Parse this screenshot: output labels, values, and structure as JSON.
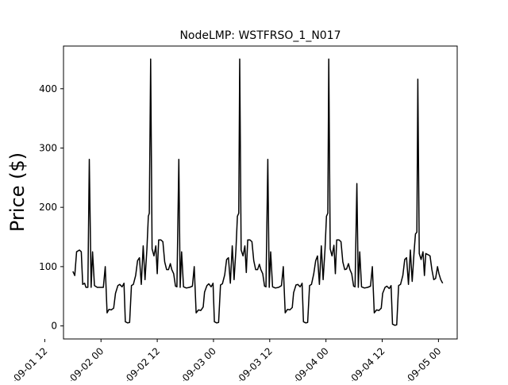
{
  "chart_data": {
    "type": "line",
    "title": "NodeLMP: WSTFRSO_1_N017",
    "xlabel": "",
    "ylabel": "Price ($)",
    "x_unit": "hour",
    "x_start": "2021-08-31T21:00",
    "x_range": [
      "2021-08-31T19:00",
      "2021-09-05T11:00"
    ],
    "ylim": [
      -22,
      472
    ],
    "grid": false,
    "legend": "none",
    "line_color": "#000000",
    "x_ticks": [
      {
        "hour": 15,
        "label": "2021-09-01 12"
      },
      {
        "hour": 27,
        "label": "2021-09-02 00"
      },
      {
        "hour": 39,
        "label": "2021-09-02 12"
      },
      {
        "hour": 51,
        "label": "2021-09-03 00"
      },
      {
        "hour": 63,
        "label": "2021-09-03 12"
      },
      {
        "hour": 75,
        "label": "2021-09-04 00"
      },
      {
        "hour": 87,
        "label": "2021-09-04 12"
      },
      {
        "hour": 99,
        "label": "2021-09-05 00"
      }
    ],
    "y_ticks": [
      0,
      100,
      200,
      300,
      400
    ],
    "series": [
      {
        "values": [
          {
            "x": 0,
            "y": 92
          },
          {
            "x": 0.4,
            "y": 85
          },
          {
            "x": 0.8,
            "y": 125
          },
          {
            "x": 1.4,
            "y": 128
          },
          {
            "x": 1.8,
            "y": 125
          },
          {
            "x": 2.1,
            "y": 70
          },
          {
            "x": 2.5,
            "y": 72
          },
          {
            "x": 2.8,
            "y": 65
          },
          {
            "x": 3.2,
            "y": 65
          },
          {
            "x": 3.5,
            "y": 281
          },
          {
            "x": 3.9,
            "y": 65
          },
          {
            "x": 4.2,
            "y": 125
          },
          {
            "x": 4.6,
            "y": 68
          },
          {
            "x": 5.2,
            "y": 65
          },
          {
            "x": 5.9,
            "y": 65
          },
          {
            "x": 6.5,
            "y": 65
          },
          {
            "x": 6.9,
            "y": 100
          },
          {
            "x": 7.3,
            "y": 22
          },
          {
            "x": 7.7,
            "y": 28
          },
          {
            "x": 8.2,
            "y": 27
          },
          {
            "x": 8.7,
            "y": 30
          },
          {
            "x": 9.1,
            "y": 55
          },
          {
            "x": 9.6,
            "y": 68
          },
          {
            "x": 10.0,
            "y": 70
          },
          {
            "x": 10.5,
            "y": 66
          },
          {
            "x": 10.9,
            "y": 72
          },
          {
            "x": 11.2,
            "y": 7
          },
          {
            "x": 11.7,
            "y": 5
          },
          {
            "x": 12.1,
            "y": 6
          },
          {
            "x": 12.5,
            "y": 68
          },
          {
            "x": 12.9,
            "y": 70
          },
          {
            "x": 13.4,
            "y": 85
          },
          {
            "x": 13.8,
            "y": 110
          },
          {
            "x": 14.2,
            "y": 115
          },
          {
            "x": 14.6,
            "y": 70
          },
          {
            "x": 15.0,
            "y": 135
          },
          {
            "x": 15.4,
            "y": 78
          },
          {
            "x": 15.8,
            "y": 130
          },
          {
            "x": 16.1,
            "y": 185
          },
          {
            "x": 16.3,
            "y": 190
          },
          {
            "x": 16.6,
            "y": 450
          },
          {
            "x": 16.9,
            "y": 130
          },
          {
            "x": 17.3,
            "y": 118
          },
          {
            "x": 17.7,
            "y": 135
          },
          {
            "x": 18.0,
            "y": 88
          },
          {
            "x": 18.3,
            "y": 145
          },
          {
            "x": 18.8,
            "y": 145
          },
          {
            "x": 19.2,
            "y": 142
          },
          {
            "x": 19.6,
            "y": 108
          },
          {
            "x": 20.0,
            "y": 95
          },
          {
            "x": 20.4,
            "y": 95
          },
          {
            "x": 20.8,
            "y": 105
          },
          {
            "x": 21.1,
            "y": 95
          },
          {
            "x": 21.5,
            "y": 88
          },
          {
            "x": 21.9,
            "y": 67
          },
          {
            "x": 22.2,
            "y": 66
          },
          {
            "x": 22.6,
            "y": 281
          },
          {
            "x": 22.9,
            "y": 65
          },
          {
            "x": 23.2,
            "y": 125
          },
          {
            "x": 23.6,
            "y": 66
          },
          {
            "x": 24.2,
            "y": 64
          },
          {
            "x": 24.9,
            "y": 65
          },
          {
            "x": 25.5,
            "y": 67
          },
          {
            "x": 25.9,
            "y": 100
          },
          {
            "x": 26.3,
            "y": 22
          },
          {
            "x": 26.8,
            "y": 27
          },
          {
            "x": 27.3,
            "y": 26
          },
          {
            "x": 27.8,
            "y": 32
          },
          {
            "x": 28.1,
            "y": 57
          },
          {
            "x": 28.6,
            "y": 68
          },
          {
            "x": 29.0,
            "y": 71
          },
          {
            "x": 29.5,
            "y": 66
          },
          {
            "x": 29.9,
            "y": 72
          },
          {
            "x": 30.2,
            "y": 7
          },
          {
            "x": 30.7,
            "y": 5
          },
          {
            "x": 31.1,
            "y": 6
          },
          {
            "x": 31.5,
            "y": 69
          },
          {
            "x": 31.9,
            "y": 71
          },
          {
            "x": 32.4,
            "y": 86
          },
          {
            "x": 32.8,
            "y": 112
          },
          {
            "x": 33.2,
            "y": 115
          },
          {
            "x": 33.6,
            "y": 72
          },
          {
            "x": 34.0,
            "y": 135
          },
          {
            "x": 34.4,
            "y": 78
          },
          {
            "x": 34.8,
            "y": 130
          },
          {
            "x": 35.1,
            "y": 185
          },
          {
            "x": 35.4,
            "y": 190
          },
          {
            "x": 35.6,
            "y": 450
          },
          {
            "x": 35.9,
            "y": 128
          },
          {
            "x": 36.3,
            "y": 118
          },
          {
            "x": 36.7,
            "y": 135
          },
          {
            "x": 37.0,
            "y": 90
          },
          {
            "x": 37.3,
            "y": 145
          },
          {
            "x": 37.8,
            "y": 145
          },
          {
            "x": 38.2,
            "y": 142
          },
          {
            "x": 38.6,
            "y": 110
          },
          {
            "x": 39.0,
            "y": 95
          },
          {
            "x": 39.4,
            "y": 95
          },
          {
            "x": 39.8,
            "y": 104
          },
          {
            "x": 40.1,
            "y": 95
          },
          {
            "x": 40.5,
            "y": 88
          },
          {
            "x": 40.9,
            "y": 67
          },
          {
            "x": 41.2,
            "y": 66
          },
          {
            "x": 41.6,
            "y": 281
          },
          {
            "x": 41.9,
            "y": 65
          },
          {
            "x": 42.2,
            "y": 125
          },
          {
            "x": 42.6,
            "y": 66
          },
          {
            "x": 43.2,
            "y": 64
          },
          {
            "x": 43.9,
            "y": 65
          },
          {
            "x": 44.5,
            "y": 68
          },
          {
            "x": 44.9,
            "y": 100
          },
          {
            "x": 45.3,
            "y": 22
          },
          {
            "x": 45.8,
            "y": 28
          },
          {
            "x": 46.3,
            "y": 27
          },
          {
            "x": 46.8,
            "y": 31
          },
          {
            "x": 47.1,
            "y": 56
          },
          {
            "x": 47.6,
            "y": 69
          },
          {
            "x": 48.0,
            "y": 70
          },
          {
            "x": 48.5,
            "y": 66
          },
          {
            "x": 48.9,
            "y": 72
          },
          {
            "x": 49.2,
            "y": 7
          },
          {
            "x": 49.7,
            "y": 5
          },
          {
            "x": 50.1,
            "y": 6
          },
          {
            "x": 50.5,
            "y": 68
          },
          {
            "x": 50.9,
            "y": 70
          },
          {
            "x": 51.4,
            "y": 88
          },
          {
            "x": 51.8,
            "y": 110
          },
          {
            "x": 52.2,
            "y": 118
          },
          {
            "x": 52.6,
            "y": 70
          },
          {
            "x": 53.0,
            "y": 135
          },
          {
            "x": 53.4,
            "y": 78
          },
          {
            "x": 53.8,
            "y": 130
          },
          {
            "x": 54.1,
            "y": 185
          },
          {
            "x": 54.4,
            "y": 190
          },
          {
            "x": 54.6,
            "y": 450
          },
          {
            "x": 54.9,
            "y": 130
          },
          {
            "x": 55.3,
            "y": 118
          },
          {
            "x": 55.7,
            "y": 136
          },
          {
            "x": 56.0,
            "y": 88
          },
          {
            "x": 56.3,
            "y": 145
          },
          {
            "x": 56.8,
            "y": 145
          },
          {
            "x": 57.2,
            "y": 142
          },
          {
            "x": 57.6,
            "y": 108
          },
          {
            "x": 58.0,
            "y": 95
          },
          {
            "x": 58.4,
            "y": 96
          },
          {
            "x": 58.8,
            "y": 105
          },
          {
            "x": 59.1,
            "y": 95
          },
          {
            "x": 59.5,
            "y": 88
          },
          {
            "x": 59.9,
            "y": 67
          },
          {
            "x": 60.2,
            "y": 66
          },
          {
            "x": 60.6,
            "y": 240
          },
          {
            "x": 60.9,
            "y": 65
          },
          {
            "x": 61.2,
            "y": 125
          },
          {
            "x": 61.6,
            "y": 66
          },
          {
            "x": 62.2,
            "y": 64
          },
          {
            "x": 62.9,
            "y": 65
          },
          {
            "x": 63.5,
            "y": 67
          },
          {
            "x": 63.9,
            "y": 100
          },
          {
            "x": 64.3,
            "y": 22
          },
          {
            "x": 64.8,
            "y": 27
          },
          {
            "x": 65.3,
            "y": 26
          },
          {
            "x": 65.8,
            "y": 30
          },
          {
            "x": 66.1,
            "y": 55
          },
          {
            "x": 66.6,
            "y": 65
          },
          {
            "x": 67.0,
            "y": 67
          },
          {
            "x": 67.5,
            "y": 63
          },
          {
            "x": 67.9,
            "y": 68
          },
          {
            "x": 68.2,
            "y": 3
          },
          {
            "x": 68.7,
            "y": 1
          },
          {
            "x": 69.1,
            "y": 2
          },
          {
            "x": 69.5,
            "y": 68
          },
          {
            "x": 69.9,
            "y": 70
          },
          {
            "x": 70.4,
            "y": 85
          },
          {
            "x": 70.8,
            "y": 112
          },
          {
            "x": 71.2,
            "y": 115
          },
          {
            "x": 71.6,
            "y": 70
          },
          {
            "x": 72.0,
            "y": 128
          },
          {
            "x": 72.4,
            "y": 75
          },
          {
            "x": 72.8,
            "y": 125
          },
          {
            "x": 73.1,
            "y": 155
          },
          {
            "x": 73.4,
            "y": 158
          },
          {
            "x": 73.6,
            "y": 416
          },
          {
            "x": 73.9,
            "y": 122
          },
          {
            "x": 74.3,
            "y": 112
          },
          {
            "x": 74.7,
            "y": 125
          },
          {
            "x": 75.0,
            "y": 85
          },
          {
            "x": 75.3,
            "y": 122
          },
          {
            "x": 75.8,
            "y": 120
          },
          {
            "x": 76.2,
            "y": 118
          },
          {
            "x": 76.6,
            "y": 95
          },
          {
            "x": 77.0,
            "y": 78
          },
          {
            "x": 77.4,
            "y": 80
          },
          {
            "x": 77.8,
            "y": 100
          },
          {
            "x": 78.1,
            "y": 88
          },
          {
            "x": 78.5,
            "y": 78
          },
          {
            "x": 78.9,
            "y": 72
          }
        ]
      }
    ]
  }
}
